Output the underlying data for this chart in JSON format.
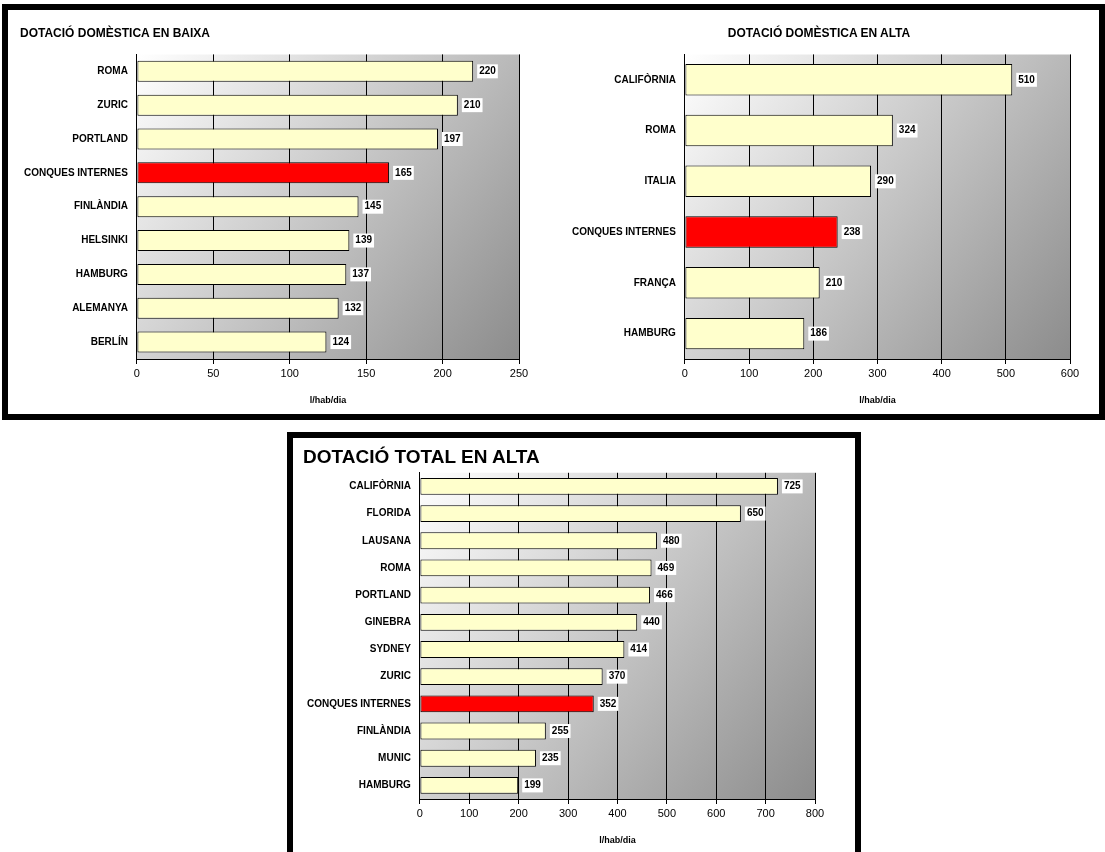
{
  "chart_data": [
    {
      "type": "bar",
      "orientation": "horizontal",
      "title": "DOTACIÓ DOMÈSTICA EN BAIXA",
      "xlabel": "l/hab/dia",
      "categories": [
        "ROMA",
        "ZURIC",
        "PORTLAND",
        "CONQUES INTERNES",
        "FINLÀNDIA",
        "HELSINKI",
        "HAMBURG",
        "ALEMANYA",
        "BERLÍN"
      ],
      "values": [
        220,
        210,
        197,
        165,
        145,
        139,
        137,
        132,
        124
      ],
      "colors": [
        "#ffffcc",
        "#ffffcc",
        "#ffffcc",
        "#ff0000",
        "#ffffcc",
        "#ffffcc",
        "#ffffcc",
        "#ffffcc",
        "#ffffcc"
      ],
      "xlim": [
        0,
        250
      ],
      "xticks": [
        0,
        50,
        100,
        150,
        200,
        250
      ],
      "grid": "x",
      "legend": false,
      "data_labels": true
    },
    {
      "type": "bar",
      "orientation": "horizontal",
      "title": "DOTACIÓ DOMÈSTICA EN ALTA",
      "xlabel": "l/hab/dia",
      "categories": [
        "CALIFÒRNIA",
        "ROMA",
        "ITALIA",
        "CONQUES INTERNES",
        "FRANÇA",
        "HAMBURG"
      ],
      "values": [
        510,
        324,
        290,
        238,
        210,
        186
      ],
      "colors": [
        "#ffffcc",
        "#ffffcc",
        "#ffffcc",
        "#ff0000",
        "#ffffcc",
        "#ffffcc"
      ],
      "xlim": [
        0,
        600
      ],
      "xticks": [
        0,
        100,
        200,
        300,
        400,
        500,
        600
      ],
      "grid": "x",
      "legend": false,
      "data_labels": true
    },
    {
      "type": "bar",
      "orientation": "horizontal",
      "title": "DOTACIÓ TOTAL EN ALTA",
      "xlabel": "l/hab/dia",
      "categories": [
        "CALIFÒRNIA",
        "FLORIDA",
        "LAUSANA",
        "ROMA",
        "PORTLAND",
        "GINEBRA",
        "SYDNEY",
        "ZURIC",
        "CONQUES INTERNES",
        "FINLÀNDIA",
        "MUNIC",
        "HAMBURG"
      ],
      "values": [
        725,
        650,
        480,
        469,
        466,
        440,
        414,
        370,
        352,
        255,
        235,
        199
      ],
      "colors": [
        "#ffffcc",
        "#ffffcc",
        "#ffffcc",
        "#ffffcc",
        "#ffffcc",
        "#ffffcc",
        "#ffffcc",
        "#ffffcc",
        "#ff0000",
        "#ffffcc",
        "#ffffcc",
        "#ffffcc"
      ],
      "xlim": [
        0,
        800
      ],
      "xticks": [
        0,
        100,
        200,
        300,
        400,
        500,
        600,
        700,
        800
      ],
      "grid": "x",
      "legend": false,
      "data_labels": true
    }
  ]
}
